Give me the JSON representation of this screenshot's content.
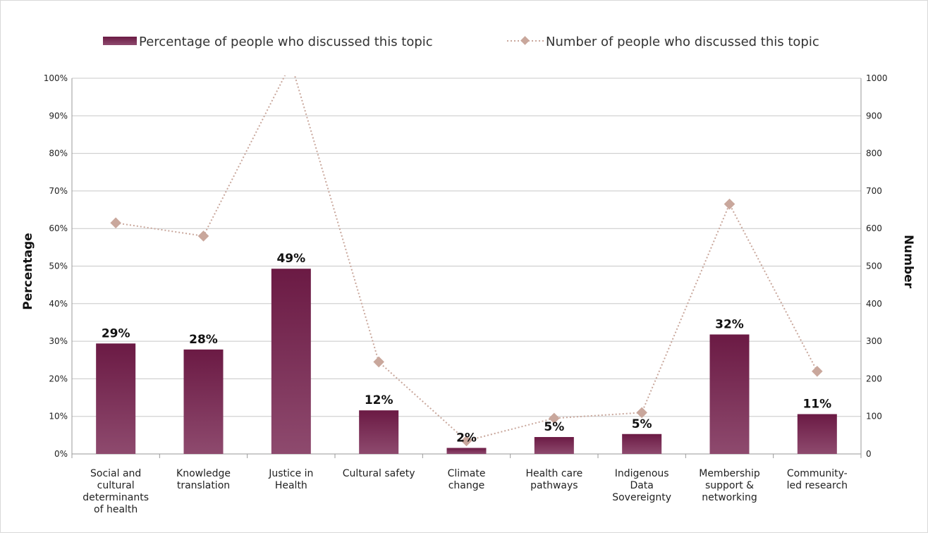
{
  "chart_data": {
    "type": "bar",
    "categories": [
      [
        "Social and",
        "cultural",
        "determinants",
        "of health"
      ],
      [
        "Knowledge",
        "translation"
      ],
      [
        "Justice in",
        "Health"
      ],
      [
        "Cultural safety"
      ],
      [
        "Climate",
        "change"
      ],
      [
        "Health care",
        "pathways"
      ],
      [
        "Indigenous",
        "Data",
        "Sovereignty"
      ],
      [
        "Membership",
        "support &",
        "networking"
      ],
      [
        "Community-",
        "led research"
      ]
    ],
    "series": [
      {
        "name": "Percentage of people who discussed this topic",
        "axis": "left",
        "type": "bar",
        "values": [
          29.4,
          27.8,
          49.3,
          11.6,
          1.6,
          4.5,
          5.3,
          31.8,
          10.6
        ],
        "labels": [
          "29%",
          "28%",
          "49%",
          "12%",
          "2%",
          "5%",
          "5%",
          "32%",
          "11%"
        ],
        "color": "#7a2350"
      },
      {
        "name": "Number of people who discussed this topic",
        "axis": "right",
        "type": "line",
        "values": [
          615,
          580,
          1040,
          245,
          35,
          95,
          110,
          665,
          220
        ],
        "color": "#c9a79c"
      }
    ],
    "ylabel": "Percentage",
    "y2label": "Number",
    "ylim": [
      0,
      100
    ],
    "y2lim": [
      0,
      1000
    ],
    "yticks": [
      "0%",
      "10%",
      "20%",
      "30%",
      "40%",
      "50%",
      "60%",
      "70%",
      "80%",
      "90%",
      "100%"
    ],
    "y2ticks": [
      "0",
      "100",
      "200",
      "300",
      "400",
      "500",
      "600",
      "700",
      "800",
      "900",
      "1000"
    ],
    "grid": true,
    "legend": "top"
  }
}
